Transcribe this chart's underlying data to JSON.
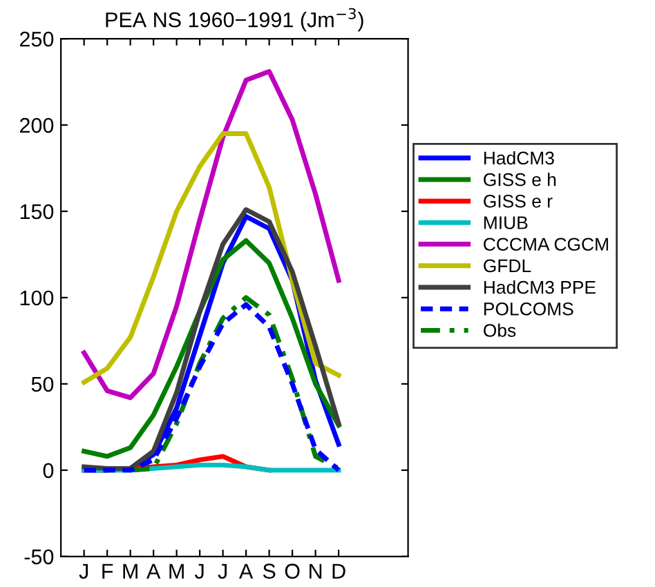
{
  "chart_data": {
    "type": "line",
    "title": "PEA NS 1960−1991 (Jm$^{−3}$)",
    "categories": [
      "J",
      "F",
      "M",
      "A",
      "M",
      "J",
      "J",
      "A",
      "S",
      "O",
      "N",
      "D"
    ],
    "ylim": [
      -50,
      250
    ],
    "yticks": [
      -50,
      0,
      50,
      100,
      150,
      200,
      250
    ],
    "grid": false,
    "legend": "right",
    "marker": "none",
    "series": [
      {
        "name": "HadCM3",
        "color": "#0000ff",
        "line_style": "solid",
        "values": [
          0,
          0,
          1,
          9,
          36,
          78,
          120,
          147,
          140,
          110,
          52,
          15
        ]
      },
      {
        "name": "GISS e h",
        "color": "#007f00",
        "line_style": "solid",
        "values": [
          11,
          8,
          13,
          32,
          60,
          92,
          122,
          133,
          120,
          88,
          50,
          26
        ]
      },
      {
        "name": "GISS e r",
        "color": "#ff0000",
        "line_style": "solid",
        "values": [
          0,
          0,
          1,
          2,
          3,
          6,
          8,
          2,
          0,
          null,
          null,
          null
        ]
      },
      {
        "name": "MIUB",
        "color": "#00bfbf",
        "line_style": "solid",
        "values": [
          0,
          0,
          0,
          1,
          2,
          3,
          3,
          2,
          0,
          0,
          0,
          0
        ]
      },
      {
        "name": "CCCMA CGCM",
        "color": "#bf00bf",
        "line_style": "solid",
        "values": [
          68,
          46,
          42,
          56,
          95,
          145,
          193,
          226,
          231,
          203,
          160,
          110
        ]
      },
      {
        "name": "GFDL",
        "color": "#bfbf00",
        "line_style": "solid",
        "values": [
          51,
          59,
          77,
          112,
          150,
          176,
          195,
          195,
          164,
          110,
          62,
          55
        ]
      },
      {
        "name": "HadCM3 PPE",
        "color": "#404040",
        "line_style": "solid",
        "values": [
          2,
          1,
          1,
          11,
          45,
          92,
          131,
          151,
          144,
          115,
          72,
          27
        ]
      },
      {
        "name": "POLCOMS",
        "color": "#0000ff",
        "line_style": "dashed",
        "values": [
          0,
          0,
          0,
          6,
          30,
          60,
          85,
          96,
          83,
          50,
          12,
          0
        ]
      },
      {
        "name": "Obs",
        "color": "#007f00",
        "line_style": "dashdot",
        "values": [
          null,
          null,
          0,
          1,
          27,
          62,
          88,
          100,
          90,
          53,
          8,
          1
        ]
      }
    ]
  }
}
